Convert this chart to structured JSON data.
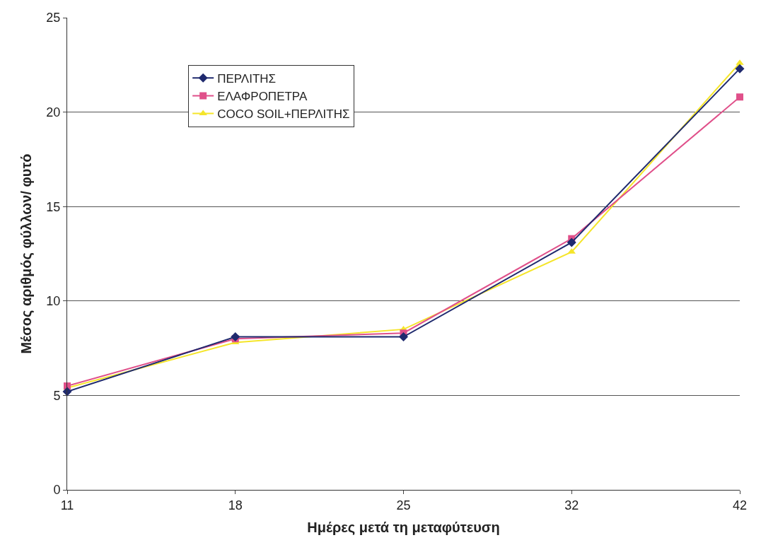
{
  "chart_data": {
    "type": "line",
    "xlabel": "Ημέρες μετά τη μεταφύτευση",
    "ylabel": "Μέσος αριθμός φύλλων/ φυτό",
    "categories": [
      "11",
      "18",
      "25",
      "32",
      "42"
    ],
    "series": [
      {
        "name": "ΠΕΡΛΙΤΗΣ",
        "color": "#1f2a6e",
        "marker": "diamond",
        "values": [
          5.2,
          8.1,
          8.1,
          13.1,
          22.3
        ]
      },
      {
        "name": "ΕΛΑΦΡΟΠΕΤΡΑ",
        "color": "#e0508a",
        "marker": "square",
        "values": [
          5.5,
          8.0,
          8.3,
          13.3,
          20.8
        ]
      },
      {
        "name": "COCO SOIL+ΠΕΡΛΙΤΗΣ",
        "color": "#f5e52a",
        "marker": "triangle",
        "values": [
          5.4,
          7.8,
          8.5,
          12.6,
          22.6
        ]
      }
    ],
    "ylim": [
      0,
      25
    ],
    "yticks": [
      0,
      5,
      10,
      15,
      20,
      25
    ],
    "grid": "y",
    "legend": "top left",
    "line_style": "solid"
  }
}
